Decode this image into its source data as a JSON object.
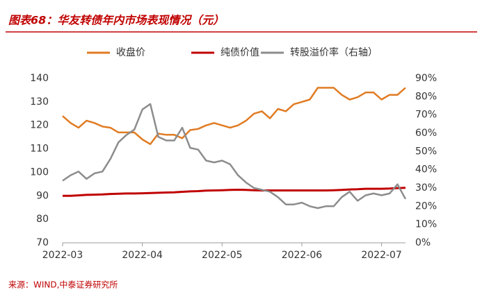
{
  "title": "图表68：华友转债年内市场表现情况（元）",
  "source": "来源：WIND,中泰证券研究所",
  "chart_data": {
    "type": "line",
    "categories": [
      "2022-03",
      null,
      null,
      null,
      null,
      null,
      null,
      null,
      null,
      null,
      "2022-04",
      null,
      null,
      null,
      null,
      null,
      null,
      null,
      null,
      null,
      "2022-05",
      null,
      null,
      null,
      null,
      null,
      null,
      null,
      null,
      null,
      "2022-06",
      null,
      null,
      null,
      null,
      null,
      null,
      null,
      null,
      null,
      "2022-07",
      null,
      null,
      null
    ],
    "series": [
      {
        "name": "收盘价",
        "color": "#e07b22",
        "axis": "y",
        "values": [
          124,
          121,
          119,
          122,
          121,
          119.5,
          119,
          117,
          117,
          117,
          114,
          112,
          116.5,
          116,
          116,
          114.5,
          118,
          118.5,
          120,
          121,
          120,
          119,
          120,
          122,
          125,
          126,
          123,
          127,
          126,
          129,
          130,
          131,
          136,
          136,
          136,
          133,
          131,
          132,
          134,
          134,
          131,
          133,
          133,
          136
        ]
      },
      {
        "name": "纯债价值",
        "color": "#c00000",
        "axis": "y",
        "values": [
          90,
          90,
          90.2,
          90.4,
          90.5,
          90.6,
          90.8,
          90.9,
          91,
          91,
          91.1,
          91.2,
          91.3,
          91.4,
          91.5,
          91.7,
          91.9,
          92,
          92.2,
          92.3,
          92.4,
          92.5,
          92.6,
          92.5,
          92.4,
          92.3,
          92.3,
          92.3,
          92.3,
          92.3,
          92.3,
          92.3,
          92.3,
          92.3,
          92.4,
          92.5,
          92.7,
          92.8,
          93,
          93,
          93,
          93.1,
          93.3,
          93.4
        ]
      },
      {
        "name": "转股溢价率（右轴）",
        "color": "#8c8c8c",
        "axis": "y2",
        "values": [
          34,
          37,
          39,
          35,
          38,
          39,
          46,
          55,
          59,
          62,
          73,
          76,
          58,
          56,
          56,
          63,
          52,
          51,
          45,
          44,
          45,
          43,
          37,
          33,
          30,
          29,
          28,
          25,
          21,
          21,
          22,
          20,
          19,
          20,
          20,
          25,
          28,
          23,
          26,
          27,
          26,
          27,
          32,
          24
        ]
      }
    ],
    "ylim": [
      70,
      140
    ],
    "yticks": [
      70,
      80,
      90,
      100,
      110,
      120,
      130,
      140
    ],
    "y2lim": [
      0,
      90
    ],
    "y2ticks": [
      {
        "value": 0,
        "label": "0%"
      },
      {
        "value": 10,
        "label": "10%"
      },
      {
        "value": 20,
        "label": "20%"
      },
      {
        "value": 30,
        "label": "30%"
      },
      {
        "value": 40,
        "label": "40%"
      },
      {
        "value": 50,
        "label": "50%"
      },
      {
        "value": 60,
        "label": "60%"
      },
      {
        "value": 70,
        "label": "70%"
      },
      {
        "value": 80,
        "label": "80%"
      },
      {
        "value": 90,
        "label": "90%"
      }
    ],
    "grid": false
  }
}
